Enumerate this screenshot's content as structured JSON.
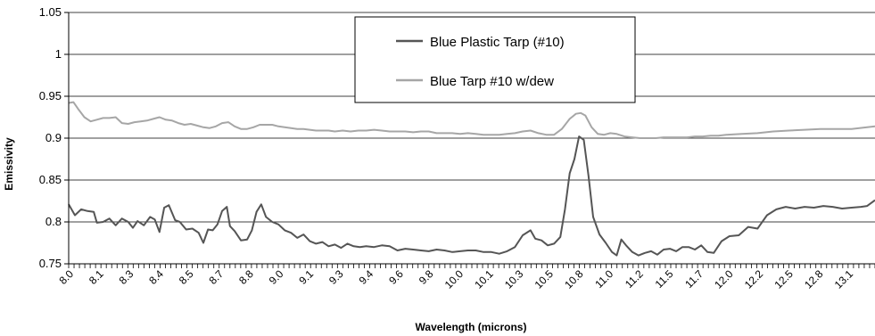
{
  "chart_data": {
    "type": "line",
    "title": "",
    "xlabel": "Wavelength (microns)",
    "ylabel": "Emissivity",
    "ylim": [
      0.75,
      1.05
    ],
    "yticks": [
      "0.75",
      "0.8",
      "0.85",
      "0.9",
      "0.95",
      "1",
      "1.05"
    ],
    "xlim": [
      8.0,
      13.15
    ],
    "xtick_labels": [
      "8.0",
      "8.1",
      "8.3",
      "8.4",
      "8.5",
      "8.7",
      "8.8",
      "9.0",
      "9.1",
      "9.3",
      "9.4",
      "9.6",
      "9.8",
      "10.0",
      "10.1",
      "10.3",
      "10.5",
      "10.8",
      "11.0",
      "11.2",
      "11.5",
      "11.7",
      "12.0",
      "12.2",
      "12.5",
      "12.8",
      "13.1"
    ],
    "grid": "horizontal",
    "legend": "top-center",
    "series": [
      {
        "name": "Blue Plastic Tarp (#10)",
        "color": "#555555",
        "points": [
          [
            8.0,
            0.821
          ],
          [
            8.04,
            0.808
          ],
          [
            8.08,
            0.815
          ],
          [
            8.12,
            0.813
          ],
          [
            8.16,
            0.812
          ],
          [
            8.18,
            0.799
          ],
          [
            8.22,
            0.8
          ],
          [
            8.26,
            0.804
          ],
          [
            8.3,
            0.796
          ],
          [
            8.34,
            0.804
          ],
          [
            8.38,
            0.8
          ],
          [
            8.41,
            0.793
          ],
          [
            8.44,
            0.801
          ],
          [
            8.48,
            0.796
          ],
          [
            8.52,
            0.806
          ],
          [
            8.55,
            0.803
          ],
          [
            8.58,
            0.788
          ],
          [
            8.61,
            0.817
          ],
          [
            8.64,
            0.82
          ],
          [
            8.68,
            0.802
          ],
          [
            8.71,
            0.8
          ],
          [
            8.75,
            0.791
          ],
          [
            8.79,
            0.792
          ],
          [
            8.83,
            0.787
          ],
          [
            8.86,
            0.775
          ],
          [
            8.89,
            0.791
          ],
          [
            8.92,
            0.79
          ],
          [
            8.95,
            0.797
          ],
          [
            8.98,
            0.813
          ],
          [
            9.01,
            0.818
          ],
          [
            9.03,
            0.795
          ],
          [
            9.06,
            0.789
          ],
          [
            9.1,
            0.778
          ],
          [
            9.14,
            0.779
          ],
          [
            9.17,
            0.79
          ],
          [
            9.2,
            0.812
          ],
          [
            9.23,
            0.821
          ],
          [
            9.26,
            0.806
          ],
          [
            9.3,
            0.8
          ],
          [
            9.34,
            0.797
          ],
          [
            9.38,
            0.79
          ],
          [
            9.42,
            0.787
          ],
          [
            9.46,
            0.781
          ],
          [
            9.5,
            0.785
          ],
          [
            9.54,
            0.777
          ],
          [
            9.58,
            0.774
          ],
          [
            9.62,
            0.776
          ],
          [
            9.66,
            0.771
          ],
          [
            9.7,
            0.773
          ],
          [
            9.74,
            0.769
          ],
          [
            9.78,
            0.774
          ],
          [
            9.82,
            0.771
          ],
          [
            9.86,
            0.77
          ],
          [
            9.9,
            0.771
          ],
          [
            9.95,
            0.77
          ],
          [
            10.0,
            0.772
          ],
          [
            10.05,
            0.771
          ],
          [
            10.1,
            0.766
          ],
          [
            10.15,
            0.768
          ],
          [
            10.2,
            0.767
          ],
          [
            10.25,
            0.766
          ],
          [
            10.3,
            0.765
          ],
          [
            10.35,
            0.767
          ],
          [
            10.4,
            0.766
          ],
          [
            10.45,
            0.764
          ],
          [
            10.5,
            0.765
          ],
          [
            10.55,
            0.766
          ],
          [
            10.6,
            0.766
          ],
          [
            10.65,
            0.764
          ],
          [
            10.7,
            0.764
          ],
          [
            10.75,
            0.762
          ],
          [
            10.8,
            0.765
          ],
          [
            10.85,
            0.77
          ],
          [
            10.9,
            0.784
          ],
          [
            10.95,
            0.79
          ],
          [
            10.98,
            0.78
          ],
          [
            11.02,
            0.778
          ],
          [
            11.06,
            0.772
          ],
          [
            11.1,
            0.774
          ],
          [
            11.14,
            0.782
          ],
          [
            11.17,
            0.815
          ],
          [
            11.2,
            0.858
          ],
          [
            11.23,
            0.875
          ],
          [
            11.26,
            0.902
          ],
          [
            11.29,
            0.898
          ],
          [
            11.32,
            0.855
          ],
          [
            11.35,
            0.806
          ],
          [
            11.39,
            0.785
          ],
          [
            11.43,
            0.775
          ],
          [
            11.47,
            0.764
          ],
          [
            11.5,
            0.76
          ],
          [
            11.53,
            0.779
          ],
          [
            11.56,
            0.772
          ],
          [
            11.6,
            0.764
          ],
          [
            11.64,
            0.76
          ],
          [
            11.68,
            0.763
          ],
          [
            11.72,
            0.765
          ],
          [
            11.76,
            0.761
          ],
          [
            11.8,
            0.767
          ],
          [
            11.84,
            0.768
          ],
          [
            11.88,
            0.765
          ],
          [
            11.92,
            0.77
          ],
          [
            11.96,
            0.77
          ],
          [
            12.0,
            0.767
          ],
          [
            12.04,
            0.772
          ],
          [
            12.08,
            0.764
          ],
          [
            12.12,
            0.763
          ],
          [
            12.17,
            0.777
          ],
          [
            12.22,
            0.783
          ],
          [
            12.28,
            0.784
          ],
          [
            12.34,
            0.794
          ],
          [
            12.4,
            0.792
          ],
          [
            12.46,
            0.808
          ],
          [
            12.52,
            0.815
          ],
          [
            12.58,
            0.818
          ],
          [
            12.64,
            0.816
          ],
          [
            12.7,
            0.818
          ],
          [
            12.76,
            0.817
          ],
          [
            12.82,
            0.819
          ],
          [
            12.88,
            0.818
          ],
          [
            12.94,
            0.816
          ],
          [
            13.0,
            0.817
          ],
          [
            13.06,
            0.818
          ],
          [
            13.1,
            0.819
          ],
          [
            13.15,
            0.826
          ]
        ]
      },
      {
        "name": "Blue Tarp #10 w/dew",
        "color": "#a6a6a6",
        "points": [
          [
            8.0,
            0.942
          ],
          [
            8.03,
            0.943
          ],
          [
            8.06,
            0.935
          ],
          [
            8.1,
            0.925
          ],
          [
            8.14,
            0.92
          ],
          [
            8.18,
            0.922
          ],
          [
            8.22,
            0.924
          ],
          [
            8.26,
            0.924
          ],
          [
            8.3,
            0.925
          ],
          [
            8.34,
            0.918
          ],
          [
            8.38,
            0.917
          ],
          [
            8.42,
            0.919
          ],
          [
            8.46,
            0.92
          ],
          [
            8.5,
            0.921
          ],
          [
            8.54,
            0.923
          ],
          [
            8.58,
            0.925
          ],
          [
            8.62,
            0.922
          ],
          [
            8.66,
            0.921
          ],
          [
            8.7,
            0.918
          ],
          [
            8.74,
            0.916
          ],
          [
            8.78,
            0.917
          ],
          [
            8.82,
            0.915
          ],
          [
            8.86,
            0.913
          ],
          [
            8.9,
            0.912
          ],
          [
            8.94,
            0.914
          ],
          [
            8.98,
            0.918
          ],
          [
            9.02,
            0.919
          ],
          [
            9.06,
            0.914
          ],
          [
            9.1,
            0.911
          ],
          [
            9.14,
            0.911
          ],
          [
            9.18,
            0.913
          ],
          [
            9.22,
            0.916
          ],
          [
            9.26,
            0.916
          ],
          [
            9.3,
            0.916
          ],
          [
            9.34,
            0.914
          ],
          [
            9.38,
            0.913
          ],
          [
            9.42,
            0.912
          ],
          [
            9.46,
            0.911
          ],
          [
            9.5,
            0.911
          ],
          [
            9.54,
            0.91
          ],
          [
            9.58,
            0.909
          ],
          [
            9.62,
            0.909
          ],
          [
            9.66,
            0.909
          ],
          [
            9.7,
            0.908
          ],
          [
            9.75,
            0.909
          ],
          [
            9.8,
            0.908
          ],
          [
            9.85,
            0.909
          ],
          [
            9.9,
            0.909
          ],
          [
            9.95,
            0.91
          ],
          [
            10.0,
            0.909
          ],
          [
            10.05,
            0.908
          ],
          [
            10.1,
            0.908
          ],
          [
            10.15,
            0.908
          ],
          [
            10.2,
            0.907
          ],
          [
            10.25,
            0.908
          ],
          [
            10.3,
            0.908
          ],
          [
            10.35,
            0.906
          ],
          [
            10.4,
            0.906
          ],
          [
            10.45,
            0.906
          ],
          [
            10.5,
            0.905
          ],
          [
            10.55,
            0.906
          ],
          [
            10.6,
            0.905
          ],
          [
            10.65,
            0.904
          ],
          [
            10.7,
            0.904
          ],
          [
            10.75,
            0.904
          ],
          [
            10.8,
            0.905
          ],
          [
            10.85,
            0.906
          ],
          [
            10.9,
            0.908
          ],
          [
            10.95,
            0.909
          ],
          [
            11.0,
            0.906
          ],
          [
            11.05,
            0.904
          ],
          [
            11.1,
            0.904
          ],
          [
            11.15,
            0.911
          ],
          [
            11.2,
            0.923
          ],
          [
            11.24,
            0.929
          ],
          [
            11.27,
            0.93
          ],
          [
            11.3,
            0.927
          ],
          [
            11.34,
            0.913
          ],
          [
            11.38,
            0.905
          ],
          [
            11.42,
            0.904
          ],
          [
            11.46,
            0.906
          ],
          [
            11.5,
            0.905
          ],
          [
            11.55,
            0.902
          ],
          [
            11.6,
            0.901
          ],
          [
            11.65,
            0.9
          ],
          [
            11.7,
            0.9
          ],
          [
            11.75,
            0.9
          ],
          [
            11.8,
            0.901
          ],
          [
            11.85,
            0.901
          ],
          [
            11.9,
            0.901
          ],
          [
            11.95,
            0.901
          ],
          [
            12.0,
            0.902
          ],
          [
            12.05,
            0.902
          ],
          [
            12.1,
            0.903
          ],
          [
            12.15,
            0.903
          ],
          [
            12.2,
            0.904
          ],
          [
            12.3,
            0.905
          ],
          [
            12.4,
            0.906
          ],
          [
            12.5,
            0.908
          ],
          [
            12.6,
            0.909
          ],
          [
            12.7,
            0.91
          ],
          [
            12.8,
            0.911
          ],
          [
            12.9,
            0.911
          ],
          [
            13.0,
            0.911
          ],
          [
            13.1,
            0.913
          ],
          [
            13.15,
            0.914
          ]
        ]
      }
    ]
  }
}
